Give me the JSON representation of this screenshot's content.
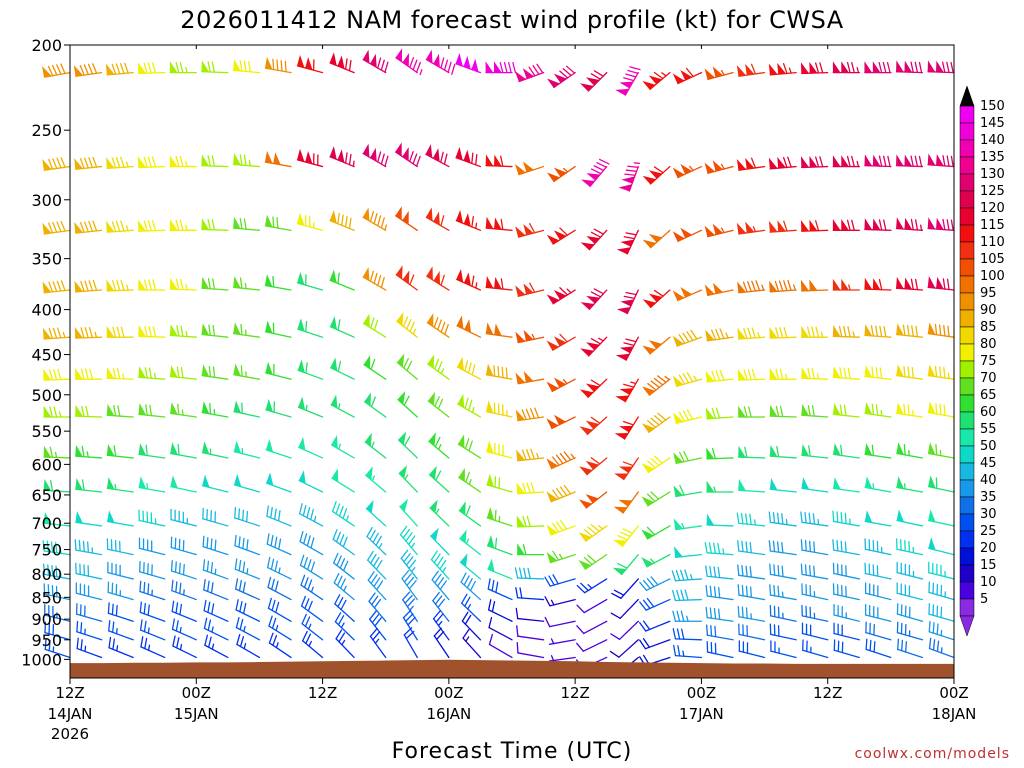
{
  "chart_data": {
    "type": "wind-barb time-height profile",
    "title": "2026011412 NAM forecast wind profile (kt) for CWSA",
    "xlabel": "Forecast Time (UTC)",
    "ylabel": "",
    "credit": "coolwx.com/models",
    "y_axis": {
      "scale": "log pressure (hPa), inverted",
      "range": [
        200,
        1050
      ],
      "ticks": [
        200,
        250,
        300,
        350,
        400,
        450,
        500,
        550,
        600,
        650,
        700,
        750,
        800,
        850,
        900,
        950,
        1000
      ]
    },
    "x_axis": {
      "range": [
        "2026-01-14 12Z",
        "2026-01-18 00Z"
      ],
      "ticks": [
        {
          "top": "12Z",
          "mid": "14JAN",
          "bottom": "2026"
        },
        {
          "top": "00Z",
          "mid": "15JAN",
          "bottom": ""
        },
        {
          "top": "12Z",
          "mid": "",
          "bottom": ""
        },
        {
          "top": "00Z",
          "mid": "16JAN",
          "bottom": ""
        },
        {
          "top": "12Z",
          "mid": "",
          "bottom": ""
        },
        {
          "top": "00Z",
          "mid": "17JAN",
          "bottom": ""
        },
        {
          "top": "12Z",
          "mid": "",
          "bottom": ""
        },
        {
          "top": "00Z",
          "mid": "18JAN",
          "bottom": ""
        }
      ]
    },
    "times_h": [
      0,
      3,
      6,
      9,
      12,
      15,
      18,
      21,
      24,
      27,
      30,
      33,
      36,
      39,
      42,
      45,
      48,
      51,
      54,
      57,
      60,
      63,
      66,
      69,
      72,
      75,
      78,
      81,
      84
    ],
    "levels_hpa": [
      215,
      275,
      325,
      380,
      430,
      480,
      530,
      590,
      645,
      705,
      760,
      810,
      855,
      905,
      950,
      995
    ],
    "colorbar": {
      "values": [
        5,
        10,
        15,
        20,
        25,
        30,
        35,
        40,
        45,
        50,
        55,
        60,
        65,
        70,
        75,
        80,
        85,
        90,
        95,
        100,
        105,
        110,
        115,
        120,
        125,
        130,
        135,
        140,
        145,
        150
      ],
      "colors": [
        "#8a2be2",
        "#4b00e0",
        "#1e00c8",
        "#0010d8",
        "#0030f0",
        "#0050f0",
        "#1070e8",
        "#1898e8",
        "#18b8e0",
        "#10d8c8",
        "#18e8a8",
        "#20e070",
        "#30e030",
        "#60e020",
        "#a0f000",
        "#f0f000",
        "#f0d800",
        "#f0b000",
        "#f09000",
        "#f07000",
        "#f05000",
        "#f03010",
        "#f01010",
        "#e80030",
        "#e00050",
        "#e00070",
        "#f00090",
        "#f000b0",
        "#f000d8",
        "#f000f0"
      ],
      "extend_high_color": "#000000",
      "extend_low_color": "#8a2be2"
    },
    "terrain_color": "#a0522d",
    "speed_kt": [
      [
        92,
        92,
        88,
        80,
        75,
        72,
        80,
        92,
        112,
        120,
        130,
        137,
        140,
        150,
        142,
        132,
        128,
        122,
        140,
        115,
        112,
        105,
        110,
        115,
        120,
        125,
        128,
        130,
        128
      ],
      [
        90,
        90,
        85,
        80,
        76,
        72,
        75,
        100,
        120,
        125,
        130,
        128,
        122,
        118,
        112,
        100,
        105,
        140,
        135,
        112,
        105,
        105,
        112,
        118,
        122,
        125,
        128,
        130,
        128
      ],
      [
        88,
        88,
        85,
        80,
        76,
        72,
        70,
        70,
        76,
        88,
        94,
        102,
        110,
        114,
        112,
        108,
        112,
        120,
        118,
        100,
        102,
        104,
        106,
        108,
        112,
        118,
        122,
        125,
        128
      ],
      [
        90,
        88,
        85,
        80,
        76,
        70,
        66,
        62,
        60,
        62,
        92,
        108,
        110,
        114,
        112,
        110,
        116,
        122,
        122,
        112,
        100,
        98,
        96,
        96,
        100,
        106,
        112,
        118,
        122
      ],
      [
        86,
        86,
        82,
        78,
        75,
        70,
        66,
        62,
        60,
        58,
        72,
        84,
        92,
        98,
        100,
        104,
        110,
        116,
        120,
        100,
        90,
        86,
        84,
        82,
        84,
        86,
        88,
        90,
        92
      ],
      [
        80,
        78,
        76,
        74,
        72,
        70,
        66,
        62,
        58,
        58,
        62,
        70,
        74,
        82,
        90,
        98,
        104,
        112,
        114,
        96,
        84,
        80,
        78,
        76,
        76,
        78,
        80,
        82,
        84
      ],
      [
        74,
        72,
        70,
        68,
        66,
        64,
        60,
        58,
        56,
        56,
        58,
        62,
        68,
        74,
        84,
        92,
        102,
        110,
        112,
        88,
        78,
        72,
        70,
        68,
        70,
        72,
        74,
        76,
        78
      ],
      [
        66,
        64,
        62,
        60,
        58,
        56,
        54,
        52,
        52,
        54,
        56,
        60,
        64,
        70,
        78,
        86,
        96,
        108,
        110,
        78,
        68,
        62,
        60,
        58,
        58,
        60,
        62,
        64,
        66
      ],
      [
        60,
        58,
        56,
        54,
        52,
        50,
        50,
        48,
        50,
        52,
        54,
        56,
        60,
        66,
        72,
        80,
        90,
        102,
        100,
        70,
        60,
        56,
        52,
        50,
        50,
        52,
        54,
        56,
        58
      ],
      [
        52,
        50,
        48,
        46,
        44,
        42,
        42,
        42,
        44,
        46,
        48,
        52,
        56,
        60,
        66,
        72,
        78,
        84,
        80,
        62,
        54,
        50,
        46,
        44,
        44,
        46,
        48,
        50,
        52
      ],
      [
        46,
        44,
        42,
        40,
        40,
        38,
        38,
        38,
        40,
        42,
        44,
        46,
        50,
        54,
        58,
        62,
        66,
        70,
        60,
        56,
        50,
        46,
        42,
        40,
        40,
        42,
        44,
        46,
        48
      ],
      [
        44,
        42,
        40,
        38,
        38,
        36,
        36,
        36,
        38,
        40,
        42,
        44,
        46,
        50,
        52,
        42,
        30,
        24,
        18,
        40,
        44,
        42,
        40,
        38,
        38,
        40,
        42,
        44,
        46
      ],
      [
        40,
        38,
        36,
        34,
        34,
        32,
        32,
        32,
        34,
        36,
        38,
        40,
        40,
        38,
        30,
        22,
        14,
        10,
        12,
        30,
        42,
        40,
        38,
        36,
        36,
        38,
        40,
        42,
        44
      ],
      [
        34,
        32,
        30,
        30,
        30,
        30,
        30,
        30,
        30,
        30,
        32,
        34,
        32,
        26,
        18,
        12,
        8,
        8,
        10,
        22,
        36,
        38,
        36,
        34,
        34,
        36,
        38,
        40,
        42
      ],
      [
        28,
        26,
        26,
        26,
        26,
        26,
        26,
        26,
        26,
        26,
        28,
        28,
        24,
        18,
        12,
        8,
        6,
        8,
        12,
        20,
        30,
        32,
        32,
        30,
        30,
        30,
        32,
        34,
        36
      ],
      [
        26,
        24,
        24,
        24,
        24,
        24,
        24,
        24,
        24,
        24,
        24,
        22,
        18,
        14,
        10,
        8,
        6,
        8,
        12,
        20,
        26,
        28,
        28,
        26,
        26,
        28,
        30,
        32,
        34
      ]
    ],
    "direction_deg": [
      [
        260,
        262,
        265,
        268,
        270,
        272,
        275,
        280,
        285,
        292,
        300,
        305,
        300,
        290,
        270,
        250,
        235,
        225,
        210,
        230,
        245,
        255,
        262,
        265,
        268,
        270,
        270,
        272,
        272
      ],
      [
        262,
        264,
        266,
        268,
        270,
        272,
        275,
        280,
        285,
        292,
        300,
        304,
        298,
        290,
        272,
        252,
        235,
        220,
        200,
        228,
        245,
        255,
        262,
        265,
        268,
        270,
        272,
        272,
        274
      ],
      [
        262,
        264,
        266,
        268,
        270,
        272,
        275,
        280,
        285,
        292,
        300,
        304,
        300,
        292,
        275,
        255,
        238,
        222,
        205,
        228,
        245,
        256,
        262,
        266,
        268,
        270,
        272,
        274,
        274
      ],
      [
        264,
        266,
        268,
        270,
        272,
        274,
        276,
        280,
        286,
        292,
        300,
        306,
        302,
        294,
        276,
        256,
        238,
        222,
        205,
        228,
        246,
        258,
        264,
        266,
        268,
        270,
        272,
        274,
        276
      ],
      [
        266,
        268,
        270,
        272,
        274,
        276,
        278,
        282,
        288,
        294,
        302,
        308,
        304,
        296,
        278,
        258,
        240,
        224,
        208,
        230,
        250,
        262,
        266,
        268,
        270,
        272,
        274,
        276,
        278
      ],
      [
        268,
        270,
        272,
        274,
        276,
        278,
        280,
        284,
        290,
        296,
        304,
        310,
        306,
        298,
        280,
        260,
        242,
        226,
        210,
        232,
        254,
        264,
        268,
        270,
        272,
        274,
        276,
        278,
        278
      ],
      [
        270,
        272,
        274,
        276,
        278,
        280,
        282,
        286,
        292,
        298,
        306,
        312,
        308,
        300,
        282,
        262,
        244,
        228,
        212,
        234,
        256,
        266,
        270,
        272,
        274,
        276,
        278,
        278,
        280
      ],
      [
        272,
        274,
        276,
        278,
        280,
        282,
        284,
        288,
        294,
        300,
        308,
        314,
        310,
        302,
        284,
        264,
        246,
        230,
        214,
        236,
        258,
        268,
        272,
        274,
        276,
        278,
        278,
        280,
        280
      ],
      [
        274,
        276,
        278,
        280,
        282,
        284,
        286,
        290,
        296,
        302,
        310,
        316,
        312,
        304,
        286,
        266,
        248,
        232,
        216,
        238,
        260,
        270,
        274,
        276,
        278,
        278,
        280,
        280,
        282
      ],
      [
        276,
        278,
        280,
        282,
        284,
        286,
        288,
        292,
        298,
        304,
        312,
        318,
        314,
        306,
        288,
        268,
        250,
        234,
        218,
        240,
        262,
        272,
        276,
        278,
        278,
        280,
        280,
        282,
        282
      ],
      [
        278,
        280,
        282,
        284,
        286,
        288,
        290,
        294,
        300,
        306,
        314,
        320,
        316,
        308,
        290,
        270,
        252,
        236,
        220,
        242,
        264,
        274,
        278,
        278,
        280,
        280,
        282,
        282,
        284
      ],
      [
        280,
        282,
        284,
        286,
        288,
        290,
        292,
        296,
        302,
        308,
        316,
        322,
        318,
        310,
        292,
        272,
        254,
        238,
        222,
        244,
        266,
        276,
        278,
        280,
        280,
        282,
        282,
        284,
        284
      ],
      [
        282,
        284,
        286,
        288,
        290,
        292,
        294,
        298,
        304,
        310,
        318,
        324,
        320,
        312,
        294,
        274,
        256,
        240,
        224,
        246,
        268,
        278,
        280,
        280,
        282,
        282,
        284,
        284,
        286
      ],
      [
        284,
        286,
        288,
        290,
        292,
        294,
        296,
        300,
        306,
        312,
        320,
        326,
        322,
        314,
        296,
        276,
        258,
        242,
        226,
        248,
        270,
        278,
        280,
        282,
        282,
        284,
        284,
        286,
        286
      ],
      [
        286,
        288,
        290,
        292,
        294,
        296,
        298,
        302,
        308,
        314,
        322,
        328,
        324,
        316,
        298,
        278,
        260,
        244,
        228,
        250,
        272,
        280,
        282,
        282,
        284,
        284,
        286,
        286,
        288
      ],
      [
        288,
        290,
        292,
        294,
        296,
        298,
        300,
        304,
        310,
        316,
        324,
        330,
        326,
        318,
        300,
        280,
        262,
        246,
        230,
        252,
        274,
        282,
        284,
        284,
        286,
        286,
        288,
        288,
        290
      ]
    ],
    "surface_pressure_hpa": [
      1010,
      1010,
      1009,
      1009,
      1008,
      1008,
      1007,
      1006,
      1005,
      1004,
      1003,
      1002,
      1001,
      1002,
      1003,
      1004,
      1005,
      1007,
      1008,
      1009,
      1010,
      1011,
      1011,
      1012,
      1012,
      1012,
      1012,
      1012,
      1012
    ]
  }
}
